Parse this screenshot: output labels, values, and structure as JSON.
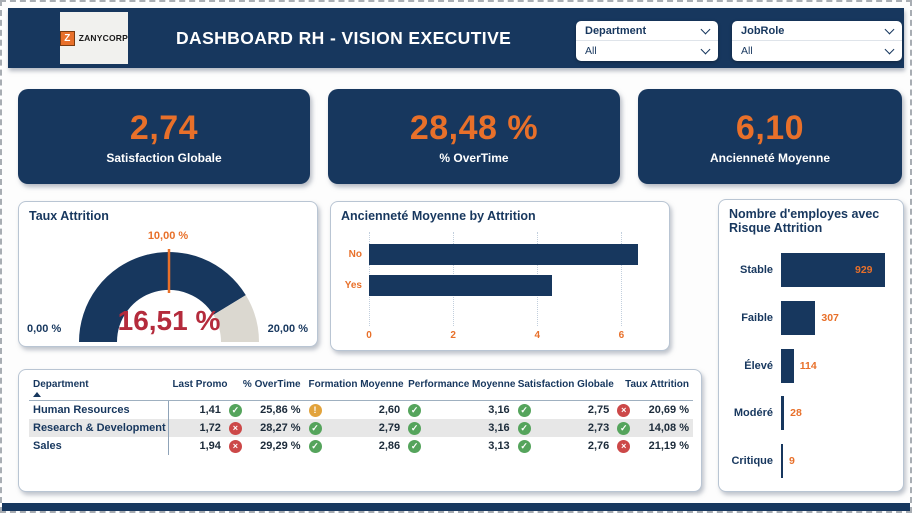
{
  "colors": {
    "navy": "#17375e",
    "orange": "#e8702a",
    "gauge_value_red": "#b42b3c",
    "gauge_rest": "#dbd8d0",
    "icon_green": "#55a45c",
    "icon_red": "#cc4848",
    "icon_amber": "#e2a33c"
  },
  "icons": {
    "check": "✓",
    "cross": "×",
    "warning": "!"
  },
  "header": {
    "logo": {
      "monogram": "Z",
      "company": "ZANYCORP"
    },
    "title": "DASHBOARD RH - VISION EXECUTIVE",
    "slicers": [
      {
        "label": "Department",
        "value": "All"
      },
      {
        "label": "JobRole",
        "value": "All"
      }
    ]
  },
  "kpis": [
    {
      "value": "2,74",
      "label": "Satisfaction Globale"
    },
    {
      "value": "28,48 %",
      "label": "% OverTime"
    },
    {
      "value": "6,10",
      "label": "Ancienneté Moyenne"
    }
  ],
  "chart_data": [
    {
      "type": "gauge",
      "title": "Taux Attrition",
      "value": 16.51,
      "value_label": "16,51 %",
      "min": 0,
      "min_label": "0,00 %",
      "max": 20,
      "max_label": "20,00 %",
      "target": 10,
      "target_label": "10,00 %"
    },
    {
      "type": "bar",
      "title": "Ancienneté Moyenne by Attrition",
      "orientation": "horizontal",
      "categories": [
        "No",
        "Yes"
      ],
      "values": [
        6.4,
        4.35
      ],
      "xticks": [
        0,
        2,
        4,
        6
      ],
      "xlim": [
        0,
        6.8
      ],
      "grid": "dotted-vertical",
      "legend": "none"
    },
    {
      "type": "bar",
      "title": "Nombre d'employes avec Risque Attrition",
      "orientation": "horizontal",
      "categories": [
        "Stable",
        "Faible",
        "Élevé",
        "Modéré",
        "Critique"
      ],
      "values": [
        929,
        307,
        114,
        28,
        9
      ],
      "value_labels": [
        "929",
        "307",
        "114",
        "28",
        "9"
      ],
      "xlim": [
        0,
        929
      ],
      "legend": "none"
    }
  ],
  "table": {
    "columns": [
      "Department",
      "Last Promo",
      "% OverTime",
      "Formation Moyenne",
      "Performance Moyenne",
      "Satisfaction Globale",
      "Taux Attrition"
    ],
    "sort": {
      "column": "Department",
      "direction": "asc"
    },
    "rows": [
      {
        "department": "Human Resources",
        "cells": [
          {
            "v": "1,41"
          },
          {
            "icon": "check",
            "v": "25,86 %"
          },
          {
            "icon": "warning",
            "v": "2,60"
          },
          {
            "icon": "check",
            "v": "3,16"
          },
          {
            "icon": "check",
            "v": "2,75"
          },
          {
            "icon": "cross",
            "v": "20,69 %"
          }
        ]
      },
      {
        "department": "Research & Development",
        "cells": [
          {
            "v": "1,72"
          },
          {
            "icon": "cross",
            "v": "28,27 %"
          },
          {
            "icon": "check",
            "v": "2,79"
          },
          {
            "icon": "check",
            "v": "3,16"
          },
          {
            "icon": "check",
            "v": "2,73"
          },
          {
            "icon": "check",
            "v": "14,08 %"
          }
        ]
      },
      {
        "department": "Sales",
        "cells": [
          {
            "v": "1,94"
          },
          {
            "icon": "cross",
            "v": "29,29 %"
          },
          {
            "icon": "check",
            "v": "2,86"
          },
          {
            "icon": "check",
            "v": "3,13"
          },
          {
            "icon": "check",
            "v": "2,76"
          },
          {
            "icon": "cross",
            "v": "21,19 %"
          }
        ]
      }
    ]
  }
}
